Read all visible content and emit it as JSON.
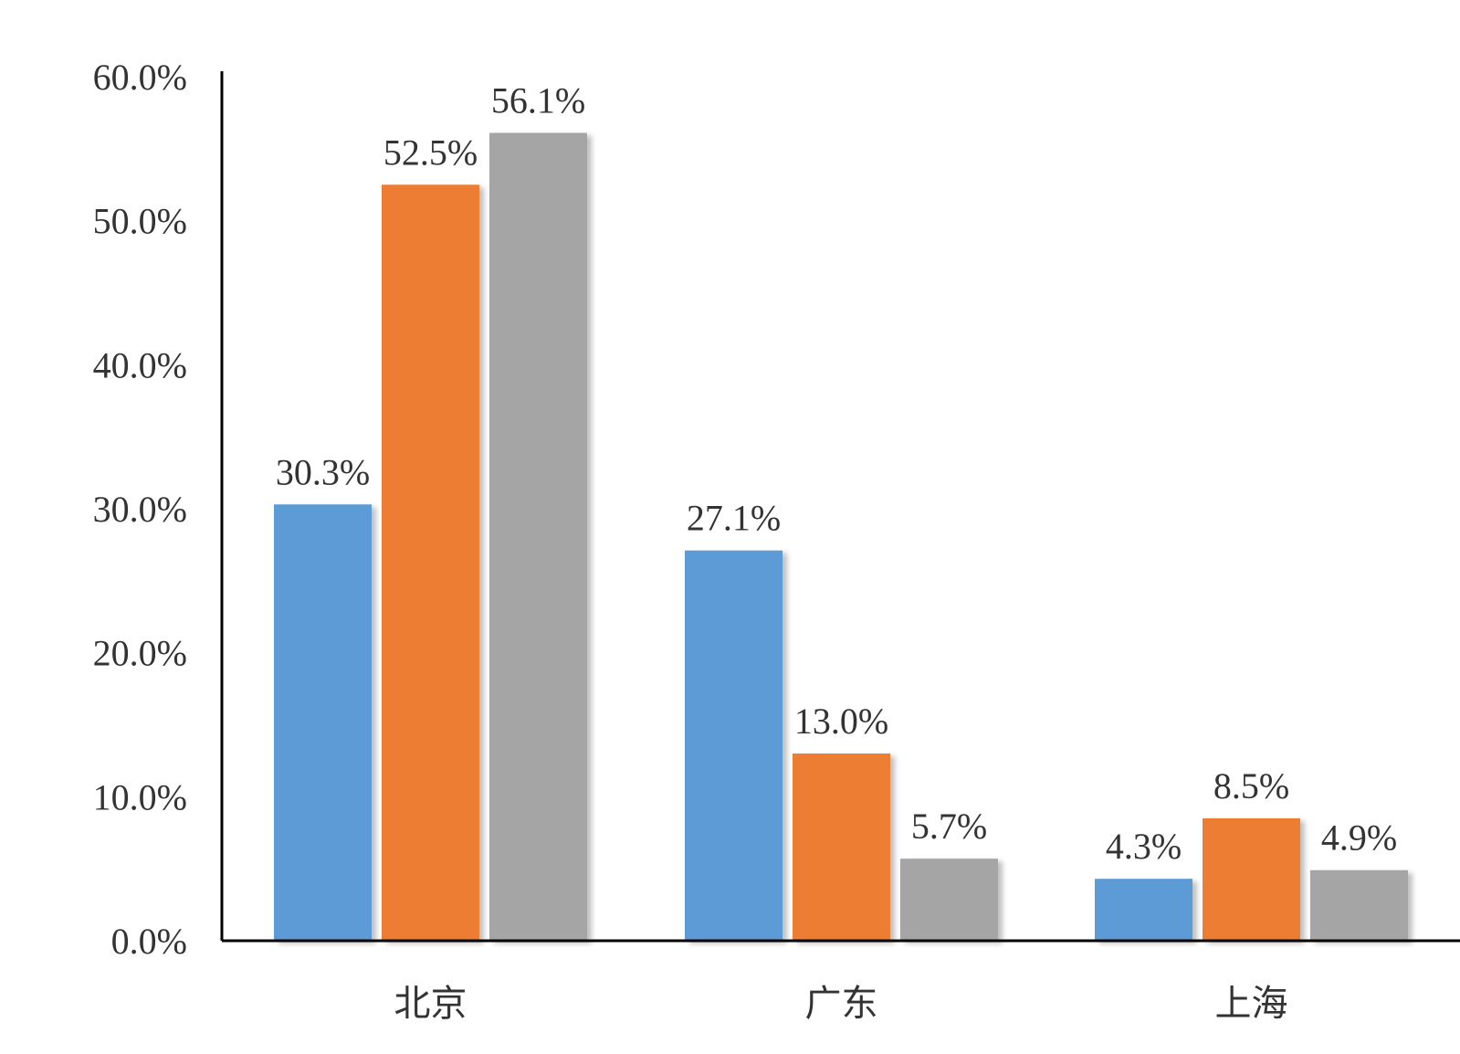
{
  "chart_data": {
    "type": "bar",
    "categories": [
      "北京",
      "广东",
      "上海"
    ],
    "series": [
      {
        "values": [
          30.3,
          27.1,
          4.3
        ],
        "color": "#5b9bd5"
      },
      {
        "values": [
          52.5,
          13.0,
          8.5
        ],
        "color": "#ed7d31"
      },
      {
        "values": [
          56.1,
          5.7,
          4.9
        ],
        "color": "#a5a5a5"
      }
    ],
    "data_labels": [
      [
        "30.3%",
        "27.1%",
        "4.3%"
      ],
      [
        "52.5%",
        "13.0%",
        "8.5%"
      ],
      [
        "56.1%",
        "5.7%",
        "4.9%"
      ]
    ],
    "y_ticks": [
      0,
      10,
      20,
      30,
      40,
      50,
      60
    ],
    "y_tick_labels": [
      "0.0%",
      "10.0%",
      "20.0%",
      "30.0%",
      "40.0%",
      "50.0%",
      "60.0%"
    ],
    "ylim": [
      0,
      60
    ],
    "grid": false,
    "legend": "none",
    "title": "",
    "xlabel": "",
    "ylabel": ""
  }
}
